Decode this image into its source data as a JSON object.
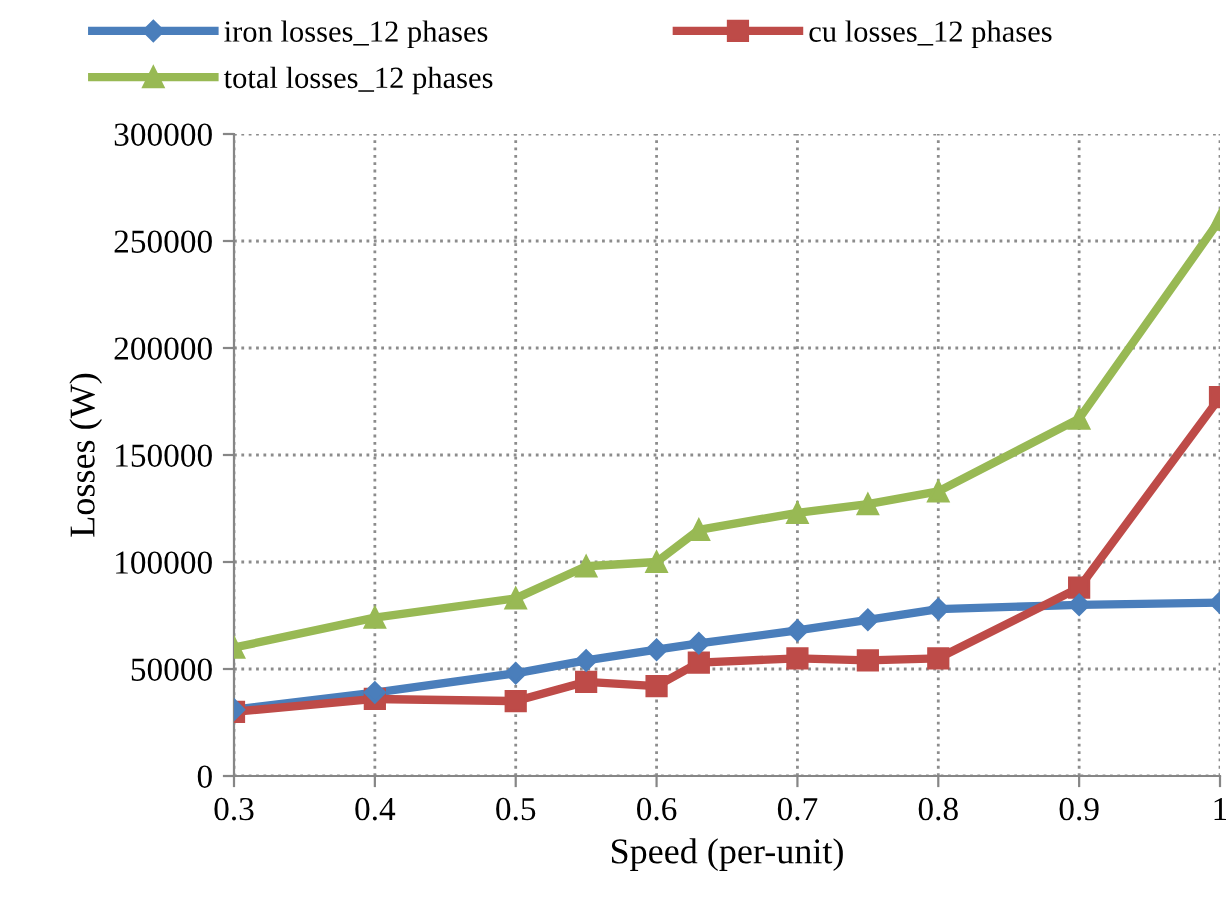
{
  "chart_data": {
    "type": "line",
    "xlabel": "Speed (per-unit)",
    "ylabel": "Losses (W)",
    "x": [
      0.3,
      0.4,
      0.5,
      0.55,
      0.6,
      0.63,
      0.7,
      0.75,
      0.8,
      0.9,
      1.0
    ],
    "series": [
      {
        "name": "iron losses_12 phases",
        "color": "#4a7ebb",
        "marker": "diamond",
        "values": [
          31000,
          39000,
          48000,
          54000,
          59000,
          62000,
          68000,
          73000,
          78000,
          80000,
          81000
        ]
      },
      {
        "name": "cu losses_12 phases",
        "color": "#be4b48",
        "marker": "square",
        "values": [
          30000,
          36000,
          35000,
          44000,
          42000,
          53000,
          55000,
          54000,
          55000,
          88000,
          177000
        ]
      },
      {
        "name": "total losses_12 phases",
        "color": "#98b954",
        "marker": "triangle",
        "values": [
          60000,
          74000,
          83000,
          98000,
          100000,
          115000,
          123000,
          127000,
          133000,
          167000,
          260000
        ]
      }
    ],
    "xlim": [
      0.3,
      1.0
    ],
    "xticks": [
      0.3,
      0.4,
      0.5,
      0.6,
      0.7,
      0.8,
      0.9,
      {
        "value": 1.0,
        "label": "1"
      }
    ],
    "ylim": [
      0,
      300000
    ],
    "yticks": [
      0,
      50000,
      100000,
      150000,
      200000,
      250000,
      300000
    ],
    "grid": true,
    "legend": "top",
    "line_style": "solid"
  }
}
